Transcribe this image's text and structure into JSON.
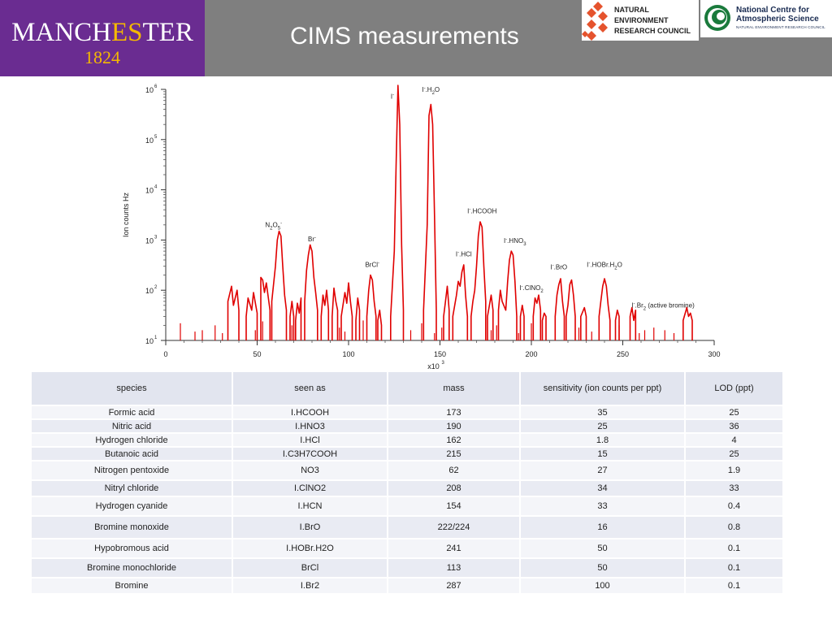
{
  "header": {
    "title": "CIMS measurements",
    "university_logo": {
      "word": "MANCHESTER",
      "year": "1824",
      "colors": {
        "bg": "#6a2c91",
        "accent": "#f5b900"
      }
    },
    "nerc_logo": {
      "lines": [
        "NATURAL",
        "ENVIRONMENT",
        "RESEARCH COUNCIL"
      ],
      "color": "#e5532d"
    },
    "ncas_logo": {
      "title_lines": [
        "National Centre for",
        "Atmospheric Science"
      ],
      "subtitle": "NATURAL ENVIRONMENT RESEARCH COUNCIL",
      "color": "#1a7a3c"
    }
  },
  "chart_data": {
    "type": "line",
    "ylabel": "Ion counts Hz",
    "x_multiplier": "x10",
    "x_multiplier_exp": "3",
    "xlim": [
      0,
      300
    ],
    "ylim": [
      10,
      1000000
    ],
    "y_scale": "log",
    "x_ticks": [
      "0",
      "50",
      "100",
      "150",
      "200",
      "250",
      "300"
    ],
    "y_ticks": [
      {
        "base": "10",
        "exp": "6",
        "value": 1000000
      },
      {
        "base": "10",
        "exp": "5",
        "value": 100000
      },
      {
        "base": "10",
        "exp": "4",
        "value": 10000
      },
      {
        "base": "10",
        "exp": "3",
        "value": 1000
      },
      {
        "base": "10",
        "exp": "2",
        "value": 100
      },
      {
        "base": "10",
        "exp": "1",
        "value": 10
      }
    ],
    "color": "#e00000",
    "baseline": 10,
    "background_points": [
      [
        8,
        22
      ],
      [
        16,
        15
      ],
      [
        20,
        16
      ],
      [
        27,
        20
      ],
      [
        31,
        14
      ],
      [
        49,
        16
      ],
      [
        53,
        24
      ],
      [
        69,
        20
      ],
      [
        95,
        18
      ],
      [
        98,
        15
      ],
      [
        108,
        25
      ],
      [
        134,
        16
      ],
      [
        140,
        22
      ],
      [
        147,
        14
      ],
      [
        151,
        18
      ],
      [
        178,
        16
      ],
      [
        181,
        20
      ],
      [
        193,
        14
      ],
      [
        200,
        22
      ],
      [
        226,
        18
      ],
      [
        233,
        15
      ],
      [
        248,
        20
      ],
      [
        259,
        14
      ],
      [
        262,
        16
      ],
      [
        267,
        18
      ],
      [
        273,
        16
      ],
      [
        278,
        14
      ]
    ],
    "series": [
      {
        "points": [
          [
            34,
            60
          ],
          [
            36,
            120
          ],
          [
            37,
            50
          ],
          [
            39,
            100
          ],
          [
            40,
            40
          ]
        ]
      },
      {
        "points": [
          [
            44,
            30
          ],
          [
            45,
            70
          ],
          [
            47,
            40
          ],
          [
            48,
            90
          ],
          [
            50,
            35
          ]
        ]
      },
      {
        "points": [
          [
            52,
            180
          ],
          [
            53,
            160
          ],
          [
            54,
            90
          ],
          [
            55,
            140
          ],
          [
            57,
            40
          ]
        ]
      },
      {
        "points": [
          [
            58,
            60
          ],
          [
            60,
            300
          ],
          [
            61,
            1000
          ],
          [
            62,
            1500
          ],
          [
            63,
            1200
          ],
          [
            64,
            300
          ],
          [
            65,
            80
          ],
          [
            66,
            40
          ]
        ]
      },
      {
        "points": [
          [
            68,
            30
          ],
          [
            69,
            60
          ],
          [
            70,
            30
          ]
        ]
      },
      {
        "points": [
          [
            71,
            25
          ],
          [
            72,
            55
          ],
          [
            73,
            35
          ],
          [
            74,
            70
          ]
        ]
      },
      {
        "points": [
          [
            76,
            60
          ],
          [
            77,
            250
          ],
          [
            78,
            500
          ],
          [
            79,
            800
          ],
          [
            80,
            600
          ],
          [
            81,
            180
          ],
          [
            82,
            90
          ],
          [
            83,
            40
          ]
        ]
      },
      {
        "points": [
          [
            85,
            30
          ],
          [
            86,
            80
          ],
          [
            87,
            50
          ],
          [
            88,
            100
          ],
          [
            89,
            40
          ]
        ]
      },
      {
        "points": [
          [
            91,
            30
          ],
          [
            92,
            110
          ],
          [
            93,
            60
          ],
          [
            94,
            40
          ]
        ]
      },
      {
        "points": [
          [
            96,
            30
          ],
          [
            98,
            90
          ],
          [
            99,
            55
          ],
          [
            100,
            140
          ],
          [
            101,
            60
          ],
          [
            102,
            30
          ]
        ]
      },
      {
        "points": [
          [
            104,
            25
          ],
          [
            105,
            70
          ],
          [
            106,
            40
          ]
        ]
      },
      {
        "points": [
          [
            110,
            30
          ],
          [
            111,
            100
          ],
          [
            112,
            200
          ],
          [
            113,
            160
          ],
          [
            114,
            60
          ],
          [
            115,
            30
          ]
        ]
      },
      {
        "points": [
          [
            116,
            25
          ],
          [
            117,
            40
          ],
          [
            118,
            20
          ]
        ]
      },
      {
        "points": [
          [
            123,
            30
          ],
          [
            125,
            600
          ],
          [
            126,
            30000
          ],
          [
            127,
            1200000
          ],
          [
            128,
            200000
          ],
          [
            129,
            800
          ],
          [
            130,
            40
          ]
        ]
      },
      {
        "points": [
          [
            141,
            40
          ],
          [
            143,
            2000
          ],
          [
            144,
            300000
          ],
          [
            145,
            500000
          ],
          [
            146,
            200000
          ],
          [
            147,
            3000
          ],
          [
            148,
            40
          ]
        ]
      },
      {
        "points": [
          [
            152,
            30
          ],
          [
            153,
            60
          ],
          [
            154,
            120
          ],
          [
            155,
            40
          ]
        ]
      },
      {
        "points": [
          [
            157,
            30
          ],
          [
            159,
            80
          ],
          [
            160,
            150
          ],
          [
            161,
            120
          ],
          [
            162,
            230
          ],
          [
            163,
            320
          ],
          [
            164,
            80
          ],
          [
            165,
            30
          ]
        ]
      },
      {
        "points": [
          [
            167,
            30
          ],
          [
            168,
            60
          ],
          [
            169,
            100
          ],
          [
            170,
            300
          ],
          [
            171,
            1200
          ],
          [
            172,
            2300
          ],
          [
            173,
            1800
          ],
          [
            174,
            300
          ],
          [
            175,
            60
          ]
        ]
      },
      {
        "points": [
          [
            176,
            30
          ],
          [
            178,
            80
          ],
          [
            179,
            40
          ]
        ]
      },
      {
        "points": [
          [
            182,
            40
          ],
          [
            183,
            100
          ],
          [
            184,
            60
          ],
          [
            186,
            40
          ],
          [
            187,
            150
          ],
          [
            188,
            400
          ],
          [
            189,
            600
          ],
          [
            190,
            500
          ],
          [
            191,
            150
          ],
          [
            192,
            30
          ]
        ]
      },
      {
        "points": [
          [
            194,
            30
          ],
          [
            195,
            50
          ],
          [
            196,
            30
          ]
        ]
      },
      {
        "points": [
          [
            201,
            30
          ],
          [
            202,
            70
          ],
          [
            203,
            55
          ],
          [
            204,
            80
          ],
          [
            205,
            40
          ]
        ]
      },
      {
        "points": [
          [
            206,
            25
          ],
          [
            207,
            35
          ],
          [
            208,
            30
          ]
        ]
      },
      {
        "points": [
          [
            213,
            30
          ],
          [
            214,
            80
          ],
          [
            215,
            130
          ],
          [
            216,
            170
          ],
          [
            217,
            60
          ],
          [
            218,
            30
          ]
        ]
      },
      {
        "points": [
          [
            219,
            30
          ],
          [
            220,
            50
          ],
          [
            221,
            130
          ],
          [
            222,
            160
          ],
          [
            223,
            80
          ],
          [
            224,
            30
          ]
        ]
      },
      {
        "points": [
          [
            227,
            30
          ],
          [
            229,
            45
          ],
          [
            230,
            30
          ]
        ]
      },
      {
        "points": [
          [
            237,
            30
          ],
          [
            238,
            60
          ],
          [
            239,
            120
          ],
          [
            240,
            170
          ],
          [
            241,
            120
          ],
          [
            242,
            50
          ],
          [
            243,
            25
          ]
        ]
      },
      {
        "points": [
          [
            246,
            25
          ],
          [
            247,
            40
          ],
          [
            248,
            30
          ]
        ]
      },
      {
        "points": [
          [
            254,
            30
          ],
          [
            255,
            45
          ],
          [
            256,
            25
          ],
          [
            257,
            40
          ]
        ]
      },
      {
        "points": [
          [
            283,
            25
          ],
          [
            285,
            45
          ],
          [
            286,
            30
          ],
          [
            287,
            35
          ],
          [
            288,
            25
          ]
        ]
      }
    ],
    "annotations": [
      {
        "label": "N2O5-",
        "x": 59,
        "y": 1800
      },
      {
        "label": "Br-",
        "x": 80,
        "y": 950
      },
      {
        "label": "BrCl-",
        "x": 113,
        "y": 290
      },
      {
        "label": "I-",
        "x": 124,
        "y": 650000
      },
      {
        "label": "I-.H2O",
        "x": 145,
        "y": 900000
      },
      {
        "label": "I-.HCOOH",
        "x": 173,
        "y": 3400
      },
      {
        "label": "I-.HNO3",
        "x": 191,
        "y": 870
      },
      {
        "label": "I-.HCl",
        "x": 163,
        "y": 470
      },
      {
        "label": "I-.BrO",
        "x": 215,
        "y": 260
      },
      {
        "label": "I-.HOBr.H2O",
        "x": 240,
        "y": 290
      },
      {
        "label": "I-.ClNO2",
        "x": 200,
        "y": 100
      },
      {
        "label": "I-.Br2 (active bromine)",
        "x": 272,
        "y": 45
      }
    ]
  },
  "table": {
    "columns": [
      "species",
      "seen as",
      "mass",
      "sensitivity (ion counts per ppt)",
      "LOD (ppt)"
    ],
    "rows": [
      [
        "Formic acid",
        "I.HCOOH",
        "173",
        "35",
        "25"
      ],
      [
        "Nitric acid",
        "I.HNO3",
        "190",
        "25",
        "36"
      ],
      [
        "Hydrogen chloride",
        "I.HCl",
        "162",
        "1.8",
        "4"
      ],
      [
        "Butanoic acid",
        "I.C3H7COOH",
        "215",
        "15",
        "25"
      ],
      [
        "Nitrogen pentoxide",
        "NO3",
        "62",
        "27",
        "1.9"
      ],
      [
        "Nitryl chloride",
        "I.ClNO2",
        "208",
        "34",
        "33"
      ],
      [
        "Hydrogen cyanide",
        "I.HCN",
        "154",
        "33",
        "0.4"
      ],
      [
        "Bromine monoxide",
        "I.BrO",
        "222/224",
        "16",
        "0.8"
      ],
      [
        "Hypobromous acid",
        "I.HOBr.H2O",
        "241",
        "50",
        "0.1"
      ],
      [
        "Bromine monochloride",
        "BrCl",
        "113",
        "50",
        "0.1"
      ],
      [
        "Bromine",
        "I.Br2",
        "287",
        "100",
        "0.1"
      ]
    ]
  }
}
